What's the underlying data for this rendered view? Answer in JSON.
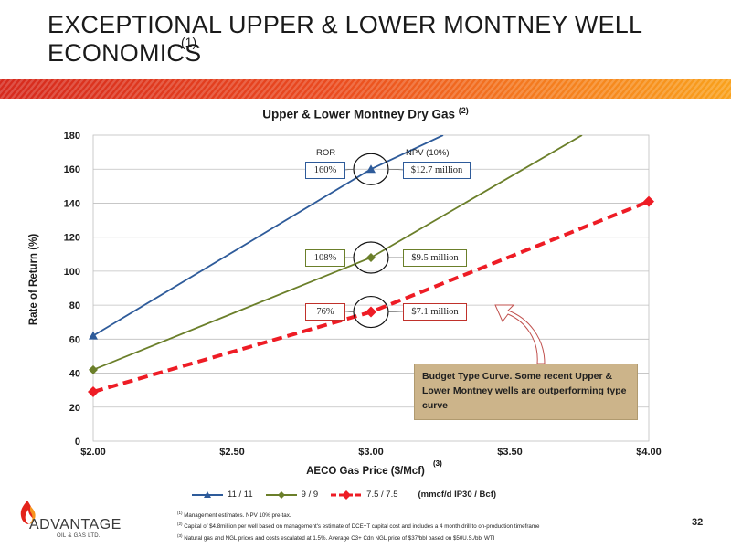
{
  "slide": {
    "title_line1": "EXCEPTIONAL UPPER & LOWER MONTNEY WELL",
    "title_line2": "ECONOMICS",
    "title_footnote": "(1)",
    "page_number": "32"
  },
  "brand": {
    "name": "ADVANTAGE",
    "sub": "OIL & GAS LTD.",
    "accent_colors": [
      "#e3231b",
      "#f7941d"
    ]
  },
  "annotations": {
    "ror_header": "ROR",
    "npv_header": "NPV (10%)",
    "callouts": [
      {
        "ror": "160%",
        "npv": "$12.7 million"
      },
      {
        "ror": "108%",
        "npv": "$9.5 million"
      },
      {
        "ror": "76%",
        "npv": "$7.1 million"
      }
    ],
    "budget_note": "Budget Type Curve. Some recent Upper & Lower Montney wells are outperforming type curve"
  },
  "legend_units": "(mmcf/d IP30 / Bcf)",
  "footnotes": [
    {
      "mark": "(1)",
      "text": "Management estimates. NPV 10% pre-tax."
    },
    {
      "mark": "(2)",
      "text": "Capital of $4.8million per well based on management's estimate of DCE+T capital cost and includes a 4 month drill to on-production timeframe"
    },
    {
      "mark": "(3)",
      "text": "Natural gas and NGL prices and costs escalated at 1.5%. Average C3+ Cdn NGL price of $37/bbl based on $50U.S./bbl WTI"
    }
  ],
  "chart_data": {
    "type": "line",
    "title": "Upper & Lower Montney Dry Gas",
    "title_footnote": "(2)",
    "xlabel": "AECO Gas Price ($/Mcf)",
    "xlabel_footnote": "(3)",
    "ylabel": "Rate of Return (%)",
    "xlim": [
      2.0,
      4.0
    ],
    "ylim": [
      0,
      180
    ],
    "x_ticks": [
      "$2.00",
      "$2.50",
      "$3.00",
      "$3.50",
      "$4.00"
    ],
    "y_ticks": [
      "0",
      "20",
      "40",
      "60",
      "80",
      "100",
      "120",
      "140",
      "160",
      "180"
    ],
    "grid": true,
    "legend_position": "bottom",
    "series": [
      {
        "name": "11 / 11",
        "color": "#2e5b9a",
        "marker": "triangle",
        "dash": "solid",
        "points": [
          [
            2.0,
            62
          ],
          [
            3.0,
            160
          ]
        ],
        "extends_to": [
          3.26,
          180
        ]
      },
      {
        "name": "9 / 9",
        "color": "#6b7f2a",
        "marker": "diamond",
        "dash": "solid",
        "points": [
          [
            2.0,
            42
          ],
          [
            3.0,
            108
          ]
        ],
        "extends_to": [
          3.76,
          180
        ]
      },
      {
        "name": "7.5 / 7.5",
        "color": "#ee1c25",
        "marker": "diamond",
        "dash": "dashed",
        "points": [
          [
            2.0,
            29
          ],
          [
            3.0,
            76
          ],
          [
            4.0,
            141
          ]
        ]
      }
    ]
  }
}
